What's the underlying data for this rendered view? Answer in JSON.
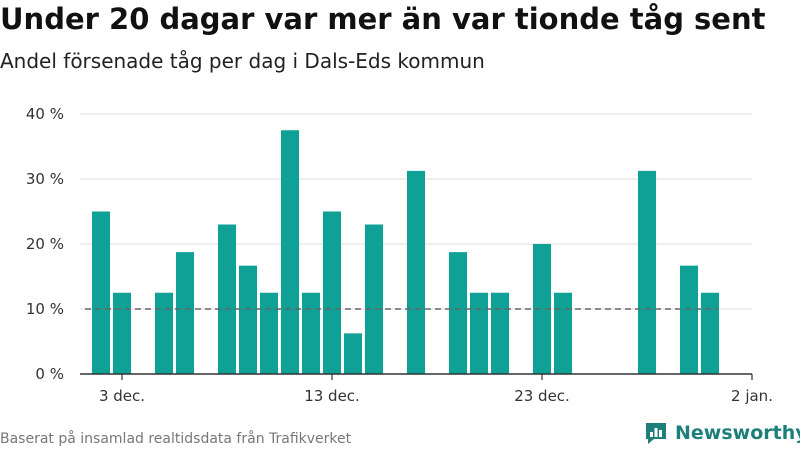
{
  "header": {
    "title": "Under 20 dagar var mer än var tionde tåg sent",
    "subtitle": "Andel försenade tåg per dag i Dals-Eds kommun"
  },
  "footer": {
    "source": "Baserat på insamlad realtidsdata från Trafikverket",
    "brand": "Newsworthy"
  },
  "colors": {
    "bar": "#0fa195",
    "reference_line": "#666666",
    "grid": "#dddddd",
    "brand": "#1e7f7a"
  },
  "chart_data": {
    "type": "bar",
    "title": "Under 20 dagar var mer än var tionde tåg sent",
    "subtitle": "Andel försenade tåg per dag i Dals-Eds kommun",
    "xlabel": "",
    "ylabel": "",
    "x_domain": [
      "2023-12-01",
      "2024-01-02"
    ],
    "ylim": [
      0,
      40
    ],
    "y_ticks": [
      0,
      10,
      20,
      30,
      40
    ],
    "y_tick_labels": [
      "0 %",
      "10 %",
      "20 %",
      "30 %",
      "40 %"
    ],
    "x_ticks": [
      {
        "date": "2023-12-03",
        "label": "3 dec."
      },
      {
        "date": "2023-12-13",
        "label": "13 dec."
      },
      {
        "date": "2023-12-23",
        "label": "23 dec."
      },
      {
        "date": "2024-01-02",
        "label": "2 jan."
      }
    ],
    "reference_line": {
      "value": 10,
      "from": "2023-12-01",
      "to": "2023-12-31",
      "style": "dashed"
    },
    "grid": true,
    "series": [
      {
        "values": [
          {
            "date": "2023-12-02",
            "value": 25
          },
          {
            "date": "2023-12-03",
            "value": 12.5
          },
          {
            "date": "2023-12-04",
            "value": 0
          },
          {
            "date": "2023-12-05",
            "value": 12.5
          },
          {
            "date": "2023-12-06",
            "value": 18.75
          },
          {
            "date": "2023-12-07",
            "value": 0
          },
          {
            "date": "2023-12-08",
            "value": 23
          },
          {
            "date": "2023-12-09",
            "value": 16.67
          },
          {
            "date": "2023-12-10",
            "value": 12.5
          },
          {
            "date": "2023-12-11",
            "value": 37.5
          },
          {
            "date": "2023-12-12",
            "value": 12.5
          },
          {
            "date": "2023-12-13",
            "value": 25
          },
          {
            "date": "2023-12-14",
            "value": 6.25
          },
          {
            "date": "2023-12-15",
            "value": 23
          },
          {
            "date": "2023-12-16",
            "value": 0
          },
          {
            "date": "2023-12-17",
            "value": 31.25
          },
          {
            "date": "2023-12-18",
            "value": 0
          },
          {
            "date": "2023-12-19",
            "value": 18.75
          },
          {
            "date": "2023-12-20",
            "value": 12.5
          },
          {
            "date": "2023-12-21",
            "value": 12.5
          },
          {
            "date": "2023-12-22",
            "value": 0
          },
          {
            "date": "2023-12-23",
            "value": 20
          },
          {
            "date": "2023-12-24",
            "value": 12.5
          },
          {
            "date": "2023-12-25",
            "value": 0
          },
          {
            "date": "2023-12-26",
            "value": 0
          },
          {
            "date": "2023-12-27",
            "value": 0
          },
          {
            "date": "2023-12-28",
            "value": 31.25
          },
          {
            "date": "2023-12-29",
            "value": 0
          },
          {
            "date": "2023-12-30",
            "value": 16.67
          },
          {
            "date": "2023-12-31",
            "value": 12.5
          }
        ]
      }
    ]
  }
}
